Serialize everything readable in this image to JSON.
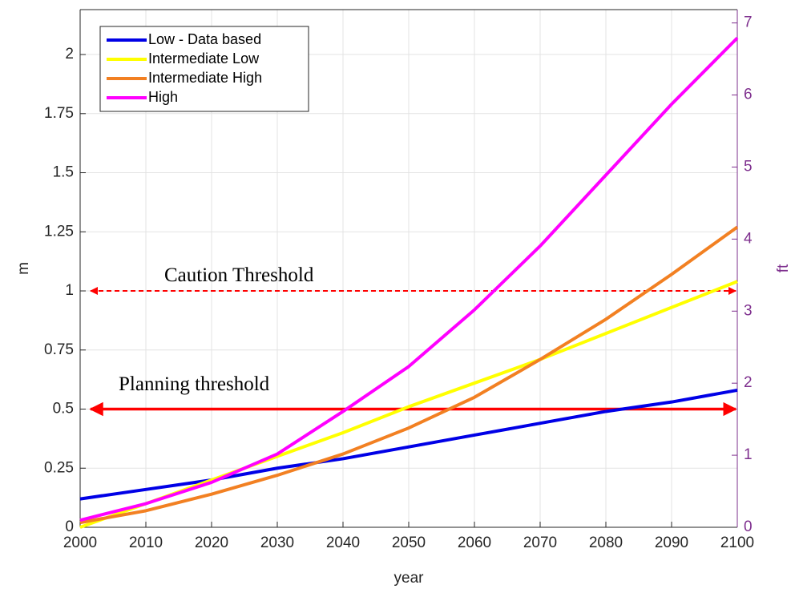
{
  "chart_data": {
    "type": "line",
    "x_label": "year",
    "y_label": "m",
    "y2_label": "ft",
    "x": [
      2000,
      2010,
      2020,
      2030,
      2040,
      2050,
      2060,
      2070,
      2080,
      2090,
      2100
    ],
    "series": [
      {
        "name": "Low - Data based",
        "color": "#0000e6",
        "values": [
          0.12,
          0.16,
          0.2,
          0.25,
          0.29,
          0.34,
          0.39,
          0.44,
          0.49,
          0.53,
          0.58
        ]
      },
      {
        "name": "Intermediate Low",
        "color": "#ffff00",
        "values": [
          0.0,
          0.1,
          0.2,
          0.3,
          0.4,
          0.51,
          0.61,
          0.71,
          0.82,
          0.93,
          1.04
        ]
      },
      {
        "name": "Intermediate High",
        "color": "#f28022",
        "values": [
          0.02,
          0.07,
          0.14,
          0.22,
          0.31,
          0.42,
          0.55,
          0.71,
          0.88,
          1.07,
          1.27
        ]
      },
      {
        "name": "High",
        "color": "#ff00ff",
        "values": [
          0.03,
          0.1,
          0.19,
          0.31,
          0.49,
          0.68,
          0.92,
          1.19,
          1.49,
          1.79,
          2.07
        ]
      }
    ],
    "thresholds": [
      {
        "label": "Caution Threshold",
        "value": 1,
        "style": "dashed",
        "color": "#ff0000"
      },
      {
        "label": "Planning threshold",
        "value": 0.5,
        "style": "solid",
        "color": "#ff0000"
      }
    ],
    "xlim": [
      2000,
      2100
    ],
    "xticks": [
      2000,
      2010,
      2020,
      2030,
      2040,
      2050,
      2060,
      2070,
      2080,
      2090,
      2100
    ],
    "ylim": [
      0,
      2.19
    ],
    "yticks": [
      0,
      0.25,
      0.5,
      0.75,
      1,
      1.25,
      1.5,
      1.75,
      2
    ],
    "y2lim": [
      0,
      7.185
    ],
    "y2ticks": [
      0,
      1,
      2,
      3,
      4,
      5,
      6,
      7
    ],
    "y2_color": "#7e2f8e",
    "grid": true,
    "legend": "upper-left"
  }
}
